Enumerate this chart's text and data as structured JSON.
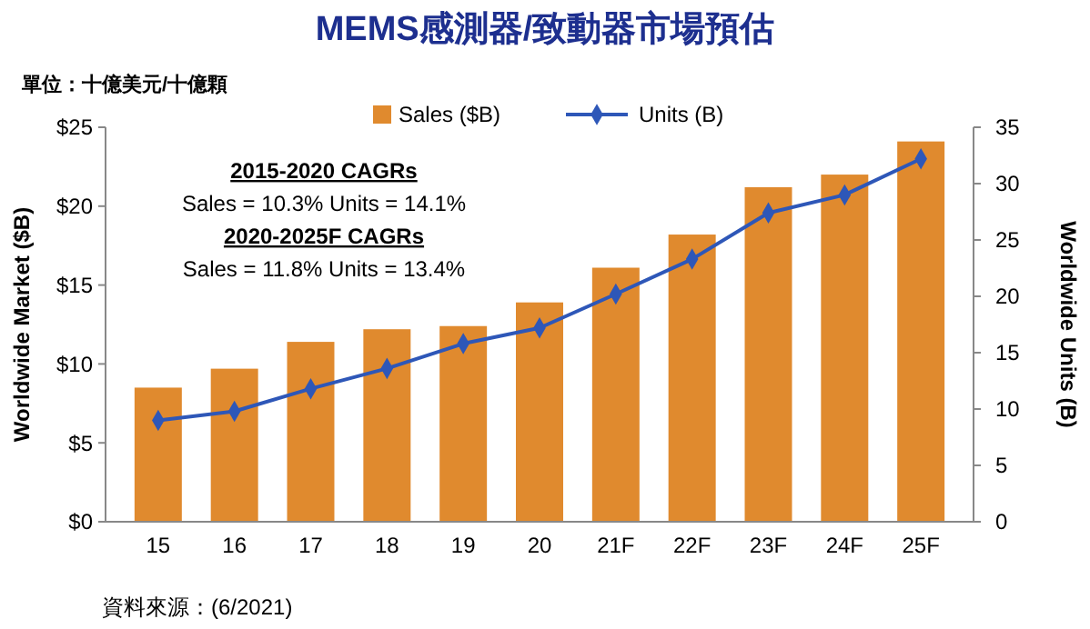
{
  "chart_data": {
    "type": "bar",
    "title": "MEMS感測器/致動器市場預估",
    "subtitle": "單位：十億美元/十億顆",
    "ylabel": "Worldwide Market ($B)",
    "y2label": "Worldwide Units (B)",
    "categories": [
      "15",
      "16",
      "17",
      "18",
      "19",
      "20",
      "21F",
      "22F",
      "23F",
      "24F",
      "25F"
    ],
    "series": [
      {
        "name": "Sales ($B)",
        "color": "#e08a2e",
        "values": [
          8.5,
          9.7,
          11.4,
          12.2,
          12.4,
          13.9,
          16.1,
          18.2,
          21.2,
          22.0,
          24.1
        ]
      },
      {
        "name": "Units (B)",
        "type": "line",
        "axis": "y2",
        "color": "#2e57b8",
        "marker": "diamond",
        "values": [
          9.0,
          9.8,
          11.8,
          13.6,
          15.8,
          17.2,
          20.2,
          23.3,
          27.4,
          29.0,
          32.2
        ]
      }
    ],
    "ylim": [
      0,
      25
    ],
    "yticks": [
      {
        "value": 0,
        "label": "$0"
      },
      {
        "value": 5,
        "label": "$5"
      },
      {
        "value": 10,
        "label": "$10"
      },
      {
        "value": 15,
        "label": "$15"
      },
      {
        "value": 20,
        "label": "$20"
      },
      {
        "value": 25,
        "label": "$25"
      }
    ],
    "y2lim": [
      0,
      35
    ],
    "y2ticks": [
      0,
      5,
      10,
      15,
      20,
      25,
      30,
      35
    ],
    "legend": "top right",
    "grid": false,
    "annotations": [
      "2015-2020 CAGRs",
      "Sales = 10.3%  Units = 14.1%",
      "2020-2025F CAGRs",
      "Sales = 11.8%  Units = 13.4%",
      "資料來源：(6/2021)"
    ]
  }
}
